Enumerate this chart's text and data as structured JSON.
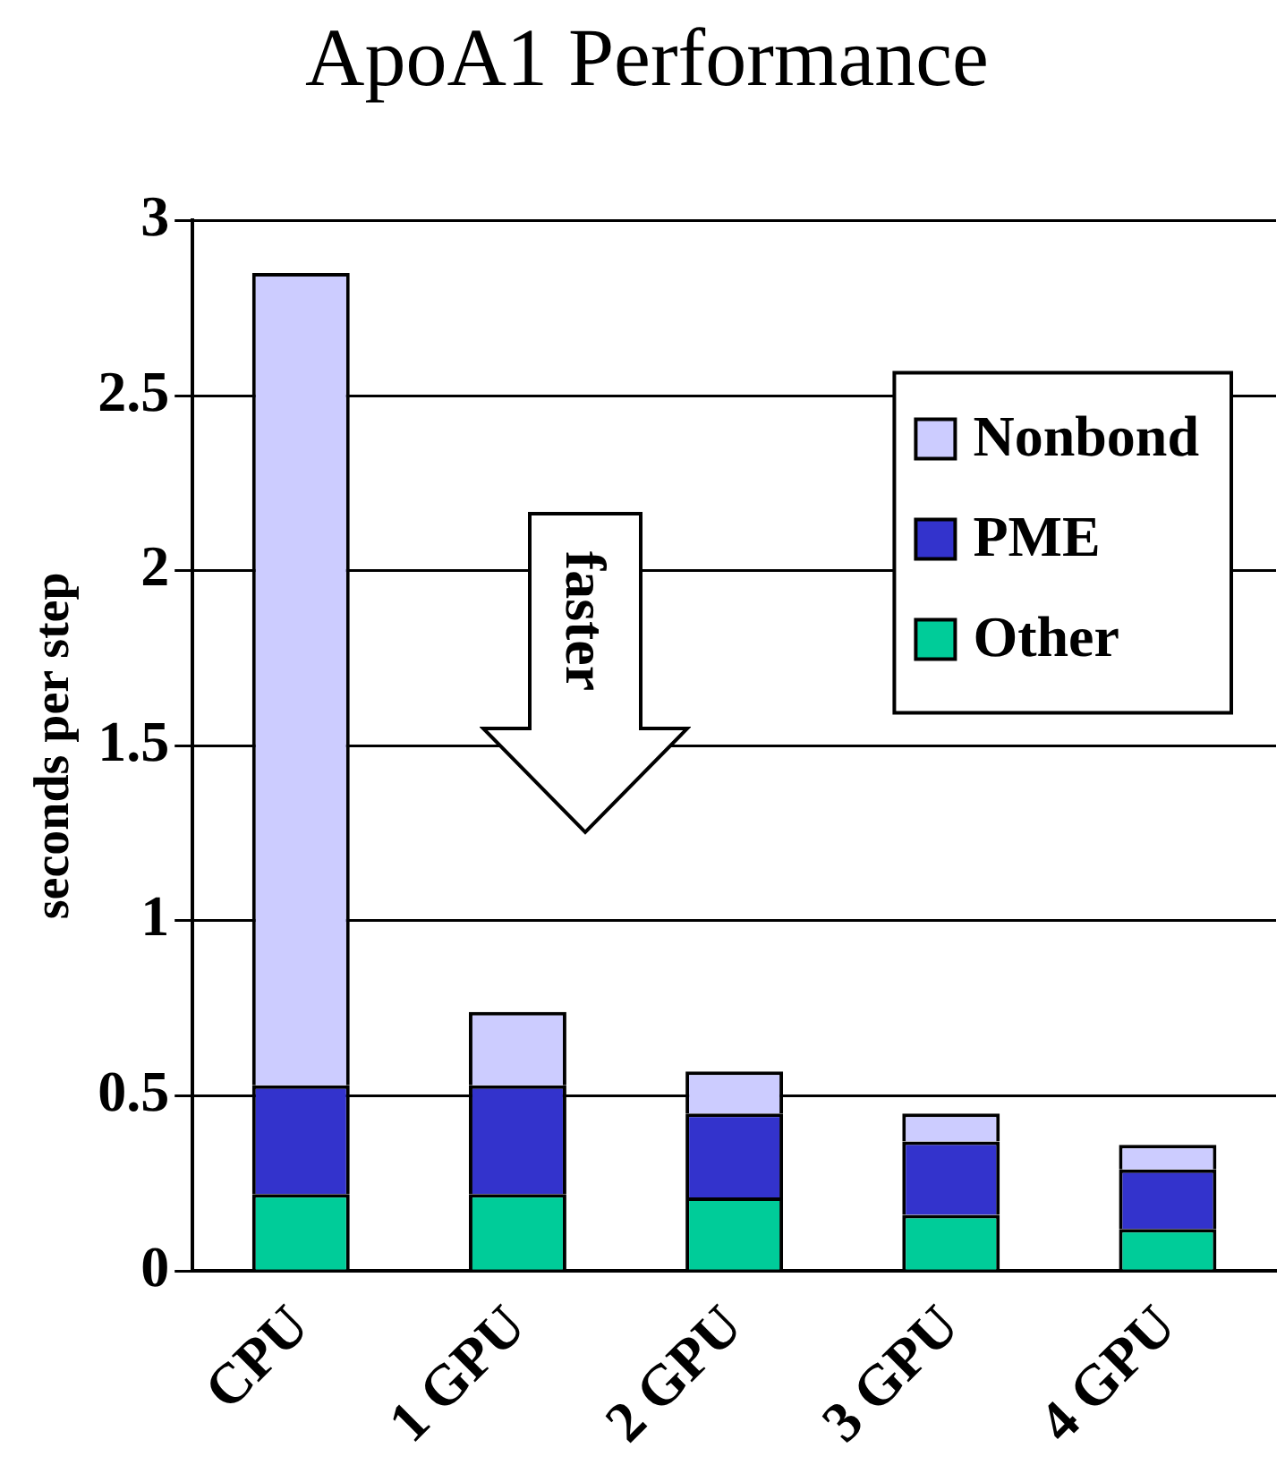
{
  "chart_data": {
    "type": "bar",
    "title": "ApoA1 Performance",
    "ylabel": "seconds per step",
    "categories": [
      "CPU",
      "1 GPU",
      "2 GPU",
      "3 GPU",
      "4 GPU"
    ],
    "stacked": true,
    "series": [
      {
        "name": "Other",
        "color": "#00cc99",
        "values": [
          0.22,
          0.22,
          0.21,
          0.16,
          0.12
        ]
      },
      {
        "name": "PME",
        "color": "#3333cc",
        "values": [
          0.31,
          0.31,
          0.24,
          0.21,
          0.17
        ]
      },
      {
        "name": "Nonbond",
        "color": "#ccccff",
        "values": [
          2.32,
          0.21,
          0.12,
          0.08,
          0.07
        ]
      }
    ],
    "ylim": [
      0,
      3
    ],
    "yticks": [
      0,
      0.5,
      1,
      1.5,
      2,
      2.5,
      3
    ],
    "grid": "y",
    "legend": "top right",
    "annotations": [
      "faster"
    ]
  }
}
